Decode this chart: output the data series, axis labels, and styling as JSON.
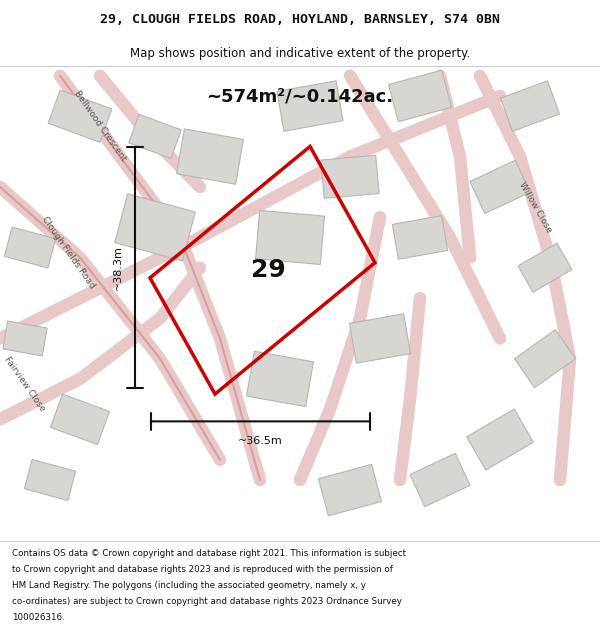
{
  "title_line1": "29, CLOUGH FIELDS ROAD, HOYLAND, BARNSLEY, S74 0BN",
  "title_line2": "Map shows position and indicative extent of the property.",
  "area_text": "~574m²/~0.142ac.",
  "property_number": "29",
  "dim_height": "~38.3m",
  "dim_width": "~36.5m",
  "footer_lines": [
    "Contains OS data © Crown copyright and database right 2021. This information is subject",
    "to Crown copyright and database rights 2023 and is reproduced with the permission of",
    "HM Land Registry. The polygons (including the associated geometry, namely x, y",
    "co-ordinates) are subject to Crown copyright and database rights 2023 Ordnance Survey",
    "100026316."
  ],
  "map_bg": "#f2f0ed",
  "road_color_light": "#e8c8c8",
  "road_color_dark": "#d4a0a0",
  "building_fill": "#d8d6d2",
  "building_stroke": "#b8b6b2",
  "red_polygon": "#cc0000",
  "black_color": "#111111",
  "white_color": "#ffffff",
  "title_fontsize": 9.5,
  "subtitle_fontsize": 8.5,
  "area_fontsize": 13,
  "dim_fontsize": 8,
  "footer_fontsize": 6.3,
  "propnum_fontsize": 18
}
